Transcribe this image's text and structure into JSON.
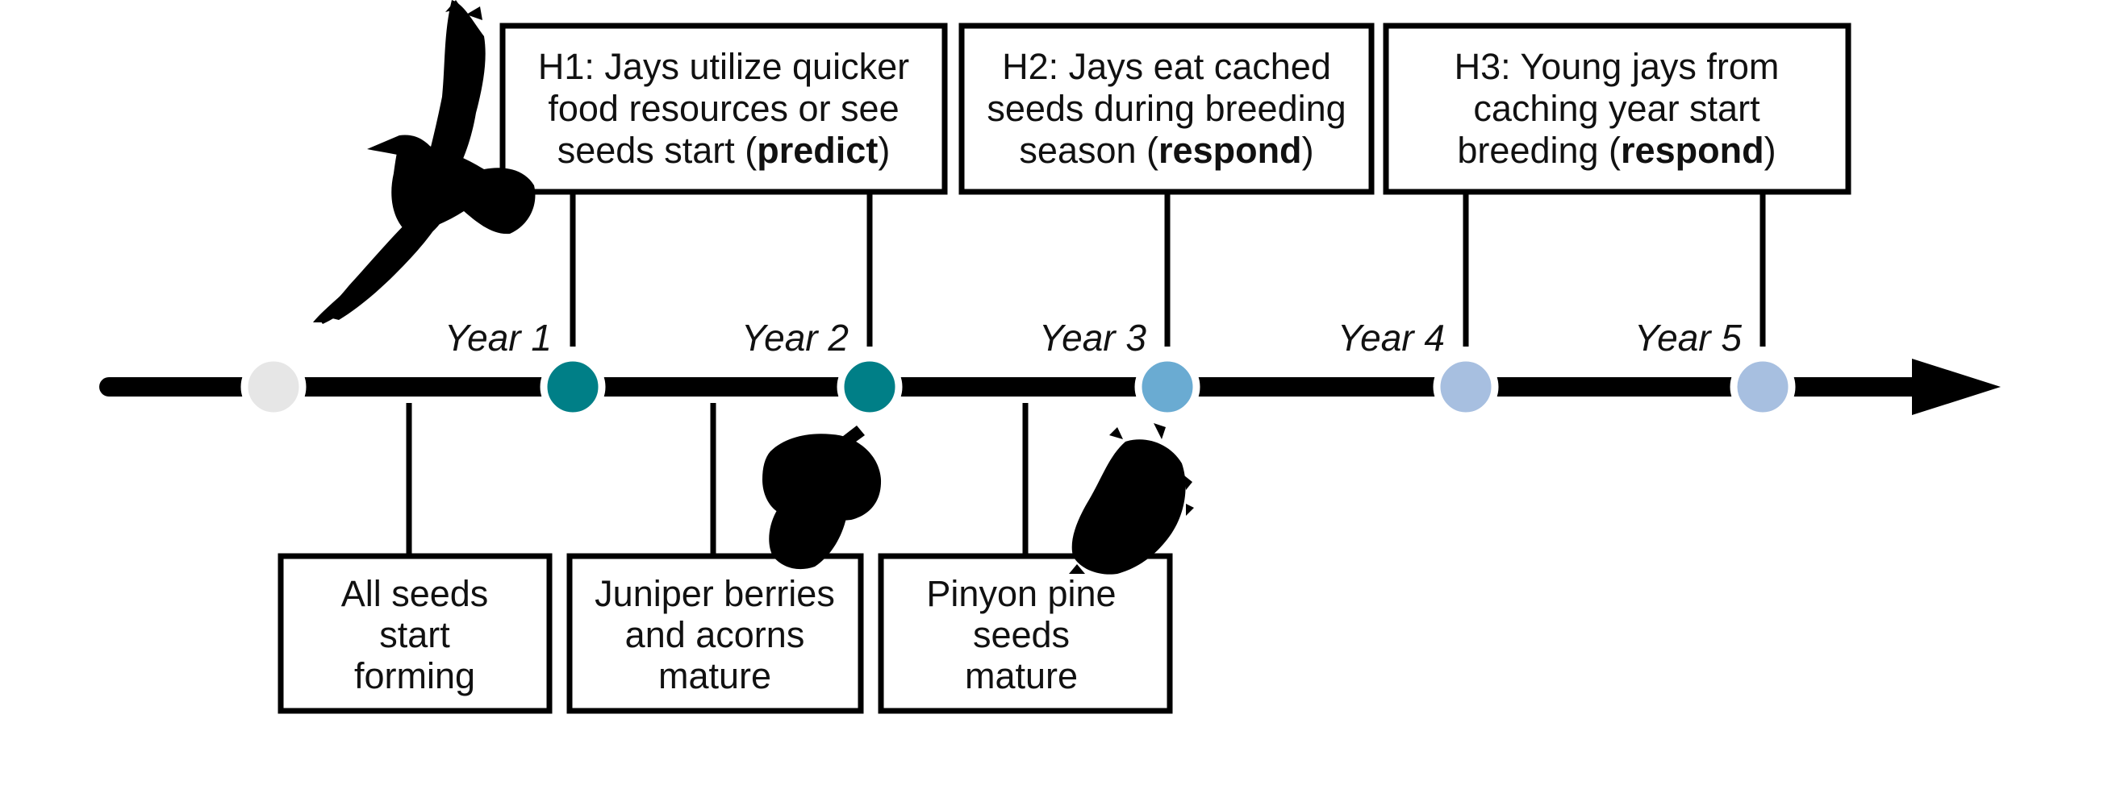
{
  "colors": {
    "line": "#000000",
    "node_start": "#e6e6e6",
    "node_year1": "#007f87",
    "node_year2": "#007f87",
    "node_year3": "#6aabd2",
    "node_year4": "#a7bfe0",
    "node_year5": "#a7bfe0"
  },
  "years": [
    "Year 1",
    "Year 2",
    "Year 3",
    "Year 4",
    "Year 5"
  ],
  "hypotheses": {
    "h1": {
      "lines": [
        "H1: Jays utilize quicker",
        "food resources or see"
      ],
      "last_prefix": "seeds start (",
      "last_bold": "predict",
      "last_suffix": ")"
    },
    "h2": {
      "lines": [
        "H2: Jays eat cached",
        "seeds during breeding"
      ],
      "last_prefix": "season (",
      "last_bold": "respond",
      "last_suffix": ")"
    },
    "h3": {
      "lines": [
        "H3: Young jays from",
        "caching year start"
      ],
      "last_prefix": "breeding (",
      "last_bold": "respond",
      "last_suffix": ")"
    }
  },
  "events": {
    "e1": [
      "All seeds",
      "start",
      "forming"
    ],
    "e2": [
      "Juniper berries",
      "and acorns",
      "mature"
    ],
    "e3": [
      "Pinyon pine",
      "seeds",
      "mature"
    ]
  },
  "icons": [
    "jay-silhouette-icon",
    "acorn-icon",
    "pine-cone-icon"
  ]
}
